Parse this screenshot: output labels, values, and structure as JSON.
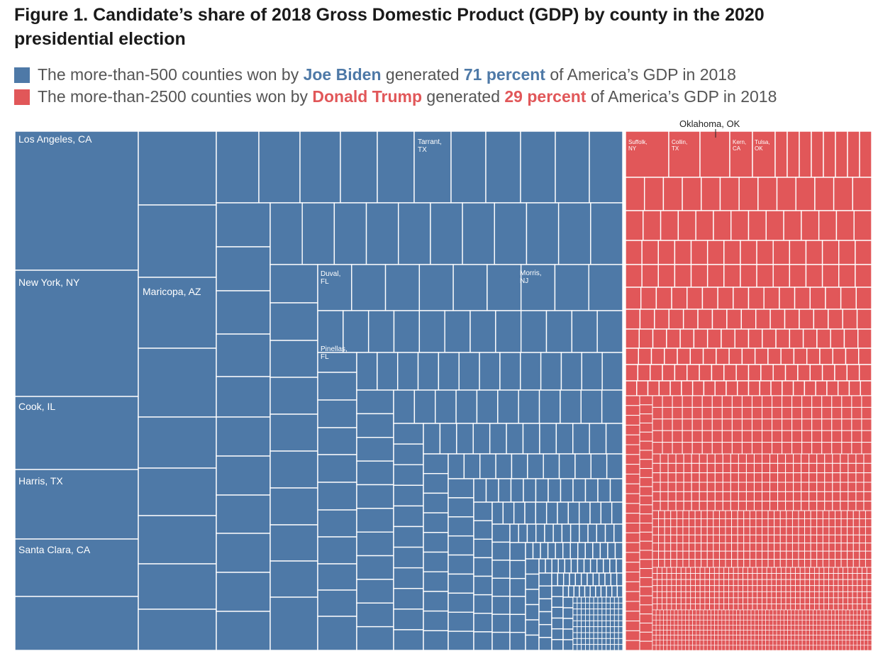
{
  "title": "Figure 1. Candidate’s share of 2018 Gross Domestic Product (GDP) by county in the 2020 presidential election",
  "colors": {
    "biden": "#4e79a7",
    "trump": "#e15759",
    "divider": "#ffffff"
  },
  "legend": [
    {
      "pre": "The more-than-500 counties won by ",
      "name": "Joe Biden",
      "mid": " generated ",
      "pct": "71 percent",
      "post": " of America’s GDP in 2018"
    },
    {
      "pre": "The more-than-2500 counties won by ",
      "name": "Donald Trump",
      "mid": " generated ",
      "pct": "29 percent",
      "post": " of America’s GDP in 2018"
    }
  ],
  "chart_data": {
    "type": "treemap",
    "title": "Figure 1. Candidate’s share of 2018 Gross Domestic Product (GDP) by county in the 2020 presidential election",
    "groups": [
      {
        "name": "Joe Biden",
        "share_percent": 71,
        "county_count": "more-than-500",
        "color": "#4e79a7"
      },
      {
        "name": "Donald Trump",
        "share_percent": 29,
        "county_count": "more-than-2500",
        "color": "#e15759"
      }
    ],
    "labels": [
      {
        "text": "Los Angeles, CA",
        "group": "Joe Biden"
      },
      {
        "text": "New York, NY",
        "group": "Joe Biden"
      },
      {
        "text": "Cook, IL",
        "group": "Joe Biden"
      },
      {
        "text": "Harris, TX",
        "group": "Joe Biden"
      },
      {
        "text": "Santa Clara, CA",
        "group": "Joe Biden"
      },
      {
        "text": "Maricopa, AZ",
        "group": "Joe Biden"
      },
      {
        "text": "Tarrant, TX",
        "group": "Joe Biden"
      },
      {
        "text": "Duval, FL",
        "group": "Joe Biden"
      },
      {
        "text": "Morris, NJ",
        "group": "Joe Biden"
      },
      {
        "text": "Pinellas, FL",
        "group": "Joe Biden"
      },
      {
        "text": "Suffolk, NY",
        "group": "Donald Trump"
      },
      {
        "text": "Collin, TX",
        "group": "Donald Trump"
      },
      {
        "text": "Kern, CA",
        "group": "Donald Trump"
      },
      {
        "text": "Tulsa, OK",
        "group": "Donald Trump"
      },
      {
        "text": "Oklahoma, OK",
        "group": "Donald Trump"
      }
    ]
  }
}
